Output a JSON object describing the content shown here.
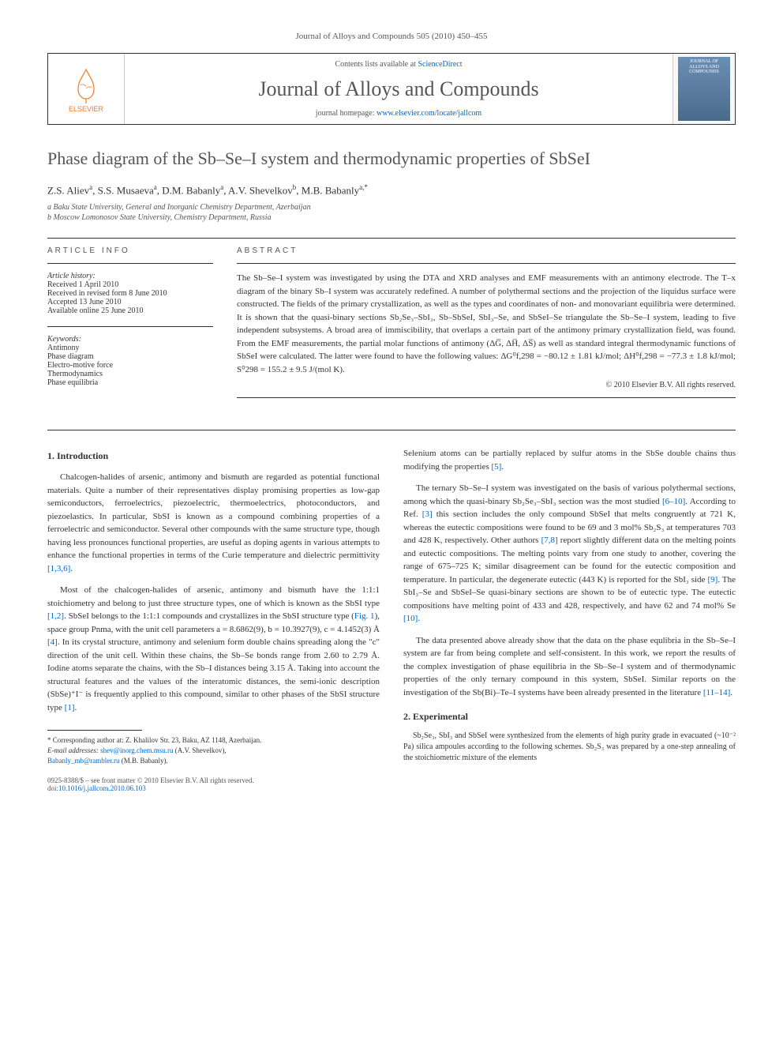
{
  "colors": {
    "link": "#0066cc",
    "text": "#333333",
    "muted": "#555555",
    "elsevier_orange": "#f47920",
    "cover_grad_top": "#6a8fb5",
    "cover_grad_bot": "#4a6a8a",
    "border": "#333333"
  },
  "citation_line": "Journal of Alloys and Compounds 505 (2010) 450–455",
  "header": {
    "contents_prefix": "Contents lists available at ",
    "contents_link": "ScienceDirect",
    "journal": "Journal of Alloys and Compounds",
    "homepage_prefix": "journal homepage: ",
    "homepage_url": "www.elsevier.com/locate/jallcom",
    "elsevier_label": "ELSEVIER",
    "cover_text": "JOURNAL OF ALLOYS AND COMPOUNDS"
  },
  "title": "Phase diagram of the Sb–Se–I system and thermodynamic properties of SbSeI",
  "authors_html": "Z.S. Aliev<sup>a</sup>, S.S. Musaeva<sup>a</sup>, D.M. Babanly<sup>a</sup>, A.V. Shevelkov<sup>b</sup>, M.B. Babanly<sup>a,*</sup>",
  "affiliations": [
    "a Baku State University, General and Inorganic Chemistry Department, Azerbaijan",
    "b Moscow Lomonosov State University, Chemistry Department, Russia"
  ],
  "article_info": {
    "label": "ARTICLE INFO",
    "history_label": "Article history:",
    "history": [
      "Received 1 April 2010",
      "Received in revised form 8 June 2010",
      "Accepted 13 June 2010",
      "Available online 25 June 2010"
    ],
    "keywords_label": "Keywords:",
    "keywords": [
      "Antimony",
      "Phase diagram",
      "Electro-motive force",
      "Thermodynamics",
      "Phase equilibria"
    ]
  },
  "abstract": {
    "label": "ABSTRACT",
    "text": "The Sb–Se–I system was investigated by using the DTA and XRD analyses and EMF measurements with an antimony electrode. The T–x diagram of the binary Sb–I system was accurately redefined. A number of polythermal sections and the projection of the liquidus surface were constructed. The fields of the primary crystallization, as well as the types and coordinates of non- and monovariant equilibria were determined. It is shown that the quasi-binary sections Sb₂Se₃–SbI₃, Sb–SbSeI, SbI₃–Se, and SbSeI–Se triangulate the Sb–Se–I system, leading to five independent subsystems. A broad area of immiscibility, that overlaps a certain part of the antimony primary crystallization field, was found. From the EMF measurements, the partial molar functions of antimony (ΔG̅, ΔH̅, ΔS̅) as well as standard integral thermodynamic functions of SbSeI were calculated. The latter were found to have the following values: ΔG⁰f,298 = −80.12 ± 1.81 kJ/mol; ΔH⁰f,298 = −77.3 ± 1.8 kJ/mol; S⁰298 = 155.2 ± 9.5 J/(mol K).",
    "copyright": "© 2010 Elsevier B.V. All rights reserved."
  },
  "body": {
    "intro_heading": "1. Introduction",
    "exp_heading": "2. Experimental",
    "paras_left": [
      "Chalcogen-halides of arsenic, antimony and bismuth are regarded as potential functional materials. Quite a number of their representatives display promising properties as low-gap semiconductors, ferroelectrics, piezoelectric, thermoelectrics, photoconductors, and piezoelastics. In particular, SbSI is known as a compound combining properties of a ferroelectric and semiconductor. Several other compounds with the same structure type, though having less pronounces functional properties, are useful as doping agents in various attempts to enhance the functional properties in terms of the Curie temperature and dielectric permittivity [1,3,6].",
      "Most of the chalcogen-halides of arsenic, antimony and bismuth have the 1:1:1 stoichiometry and belong to just three structure types, one of which is known as the SbSI type [1,2]. SbSeI belongs to the 1:1:1 compounds and crystallizes in the SbSI structure type (Fig. 1), space group Pnma, with the unit cell parameters a = 8.6862(9), b = 10.3927(9), c = 4.1452(3) Å [4]. In its crystal structure, antimony and selenium form double chains spreading along the \"c\" direction of the unit cell. Within these chains, the Sb–Se bonds range from 2.60 to 2.79 Å. Iodine atoms separate the chains, with the Sb–I distances being 3.15 Å. Taking into account the structural features and the values of the interatomic distances, the semi-ionic description (SbSe)⁺I⁻ is frequently applied to this compound, similar to other phases of the SbSI structure type [1]."
    ],
    "paras_right": [
      "Selenium atoms can be partially replaced by sulfur atoms in the SbSe double chains thus modifying the properties [5].",
      "The ternary Sb–Se–I system was investigated on the basis of various polythermal sections, among which the quasi-binary Sb₂Se₃–SbI₃ section was the most studied [6–10]. According to Ref. [3] this section includes the only compound SbSeI that melts congruently at 721 K, whereas the eutectic compositions were found to be 69 and 3 mol% Sb₂S₃ at temperatures 703 and 428 K, respectively. Other authors [7,8] report slightly different data on the melting points and eutectic compositions. The melting points vary from one study to another, covering the range of 675–725 K; similar disagreement can be found for the eutectic composition and temperature. In particular, the degenerate eutectic (443 K) is reported for the SbI₃ side [9]. The SbI₃–Se and SbSeI–Se quasi-binary sections are shown to be of eutectic type. The eutectic compositions have melting point of 433 and 428, respectively, and have 62 and 74 mol% Se [10].",
      "The data presented above already show that the data on the phase equlibria in the Sb–Se–I system are far from being complete and self-consistent. In this work, we report the results of the complex investigation of phase equilibria in the Sb–Se–I system and of thermodynamic properties of the only ternary compound in this system, SbSeI. Similar reports on the investigation of the Sb(Bi)–Te–I systems have been already presented in the literature [11–14]."
    ],
    "exp_para": "Sb₂Se₃, SbI₃ and SbSeI were synthesized from the elements of high purity grade in evacuated (~10⁻² Pa) silica ampoules according to the following schemes. Sb₂S₃ was prepared by a one-step annealing of the stoichiometric mixture of the elements"
  },
  "footnote": {
    "corr_label": "* Corresponding author at: Z. Khalilov Str. 23, Baku, AZ 1148, Azerbaijan.",
    "email_label": "E-mail addresses:",
    "email1": "shev@inorg.chem.msu.ru",
    "email1_name": "(A.V. Shevelkov),",
    "email2": "Babanly_mb@rambler.ru",
    "email2_name": "(M.B. Babanly)."
  },
  "bottom": {
    "line1": "0925-8388/$ – see front matter © 2010 Elsevier B.V. All rights reserved.",
    "doi_prefix": "doi:",
    "doi": "10.1016/j.jallcom.2010.06.103"
  }
}
